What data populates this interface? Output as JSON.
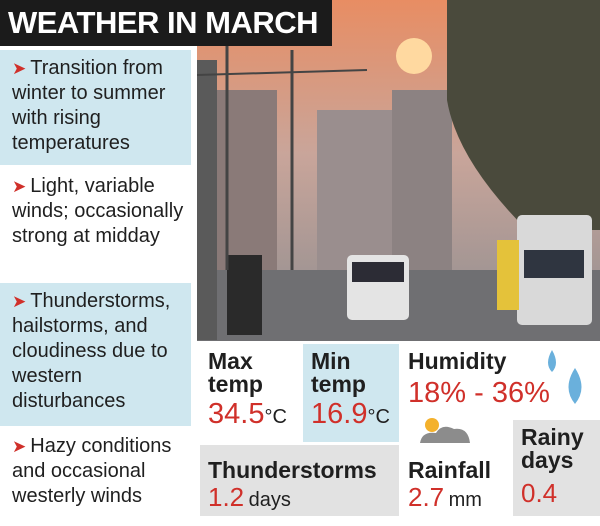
{
  "header": {
    "title": "WEATHER IN MARCH"
  },
  "bullets": [
    "Transition from winter to summer with rising temperatures",
    "Light, variable winds; occasionally strong at midday",
    "Thunderstorms, hailstorms, and cloudiness due to western disturbances",
    "Hazy conditions and occasional westerly winds"
  ],
  "stats": {
    "max_temp": {
      "label": "Max temp",
      "value": 34.5,
      "unit": "°C"
    },
    "min_temp": {
      "label": "Min temp",
      "value": 16.9,
      "unit": "°C"
    },
    "humidity": {
      "label": "Humidity",
      "value": "18% - 36%"
    },
    "thunderstorms": {
      "label": "Thunderstorms",
      "value": 1.2,
      "unit": "days"
    },
    "rainfall": {
      "label": "Rainfall",
      "value": 2.7,
      "unit": "mm"
    },
    "rainy_days": {
      "label": "Rainy days",
      "value": 0.4
    }
  }
}
